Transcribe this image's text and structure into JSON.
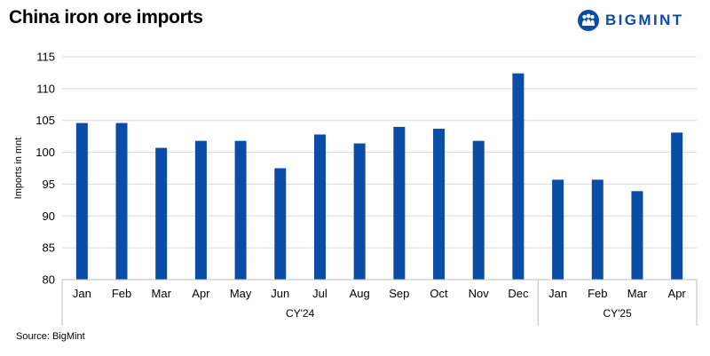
{
  "header": {
    "title": "China iron ore imports",
    "logo_text": "BIGMINT",
    "brand_color": "#0a4ca6"
  },
  "footer": {
    "source": "Source: BigMint"
  },
  "chart_data": {
    "type": "bar",
    "title": "China iron ore imports",
    "ylabel": "Imports in mnt",
    "ylim": [
      80,
      115
    ],
    "yticks": [
      80,
      85,
      90,
      95,
      100,
      105,
      110,
      115
    ],
    "grid": true,
    "bar_color": "#0a4ca6",
    "categories": [
      "Jan",
      "Feb",
      "Mar",
      "Apr",
      "May",
      "Jun",
      "Jul",
      "Aug",
      "Sep",
      "Oct",
      "Nov",
      "Dec",
      "Jan",
      "Feb",
      "Mar",
      "Apr"
    ],
    "values": [
      104.6,
      104.6,
      100.7,
      101.8,
      101.8,
      97.5,
      102.8,
      101.4,
      104.0,
      103.7,
      101.8,
      112.4,
      95.7,
      95.7,
      93.9,
      103.1
    ],
    "groups": [
      {
        "label": "CY'24",
        "count": 12
      },
      {
        "label": "CY'25",
        "count": 4
      }
    ]
  }
}
